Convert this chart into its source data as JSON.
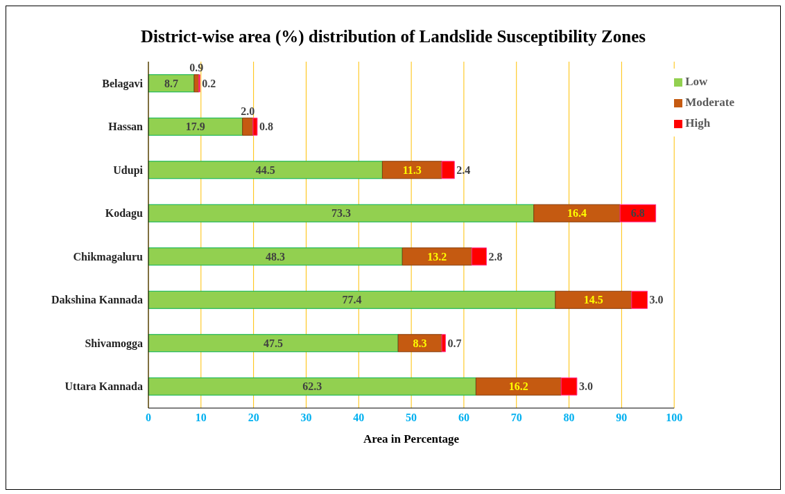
{
  "chart_data": {
    "type": "bar",
    "orientation": "horizontal",
    "stacked": true,
    "title": "District-wise area (%) distribution of Landslide Susceptibility Zones",
    "xlabel": "Area in Percentage",
    "categories": [
      "Belagavi",
      "Hassan",
      "Udupi",
      "Kodagu",
      "Chikmagaluru",
      "Dakshina Kannada",
      "Shivamogga",
      "Uttara Kannada"
    ],
    "series": [
      {
        "name": "Low",
        "color": "#92d050",
        "values": [
          8.7,
          17.9,
          44.5,
          73.3,
          48.3,
          77.4,
          47.5,
          62.3
        ],
        "value_labels": [
          "8.7",
          "17.9",
          "44.5",
          "73.3",
          "48.3",
          "77.4",
          "47.5",
          "62.3"
        ]
      },
      {
        "name": "Moderate",
        "color": "#c55a11",
        "values": [
          0.9,
          2.0,
          11.3,
          16.4,
          13.2,
          14.5,
          8.3,
          16.2
        ],
        "value_labels": [
          "0.9",
          "2.0",
          "11.3",
          "16.4",
          "13.2",
          "14.5",
          "8.3",
          "16.2"
        ]
      },
      {
        "name": "High",
        "color": "#ff0000",
        "values": [
          0.2,
          0.8,
          2.4,
          6.8,
          2.8,
          3.0,
          0.7,
          3.0
        ],
        "value_labels": [
          "0.2",
          "0.8",
          "2.4",
          "6.8",
          "2.8",
          "3.0",
          "0.7",
          "3.0"
        ]
      }
    ],
    "xlim": [
      0,
      100
    ],
    "xticks": [
      0,
      10,
      20,
      30,
      40,
      50,
      60,
      70,
      80,
      90,
      100
    ],
    "grid": "x",
    "legend": "top right"
  }
}
